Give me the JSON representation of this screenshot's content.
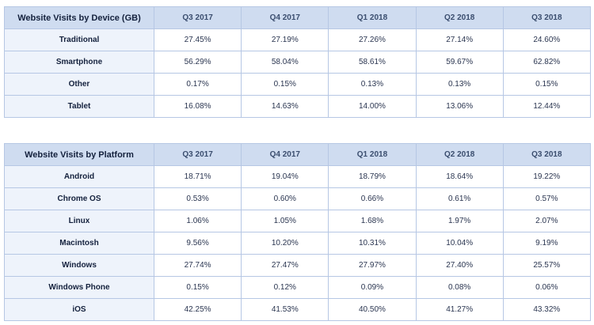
{
  "chart_data": [
    {
      "type": "table",
      "title": "Website Visits by Device (GB)",
      "columns": [
        "Q3 2017",
        "Q4 2017",
        "Q1 2018",
        "Q2 2018",
        "Q3 2018"
      ],
      "rows": [
        {
          "label": "Traditional",
          "values": [
            "27.45%",
            "27.19%",
            "27.26%",
            "27.14%",
            "24.60%"
          ]
        },
        {
          "label": "Smartphone",
          "values": [
            "56.29%",
            "58.04%",
            "58.61%",
            "59.67%",
            "62.82%"
          ]
        },
        {
          "label": "Other",
          "values": [
            "0.17%",
            "0.15%",
            "0.13%",
            "0.13%",
            "0.15%"
          ]
        },
        {
          "label": "Tablet",
          "values": [
            "16.08%",
            "14.63%",
            "14.00%",
            "13.06%",
            "12.44%"
          ]
        }
      ]
    },
    {
      "type": "table",
      "title": "Website Visits by Platform",
      "columns": [
        "Q3 2017",
        "Q4 2017",
        "Q1 2018",
        "Q2 2018",
        "Q3 2018"
      ],
      "rows": [
        {
          "label": "Android",
          "values": [
            "18.71%",
            "19.04%",
            "18.79%",
            "18.64%",
            "19.22%"
          ]
        },
        {
          "label": "Chrome OS",
          "values": [
            "0.53%",
            "0.60%",
            "0.66%",
            "0.61%",
            "0.57%"
          ]
        },
        {
          "label": "Linux",
          "values": [
            "1.06%",
            "1.05%",
            "1.68%",
            "1.97%",
            "2.07%"
          ]
        },
        {
          "label": "Macintosh",
          "values": [
            "9.56%",
            "10.20%",
            "10.31%",
            "10.04%",
            "9.19%"
          ]
        },
        {
          "label": "Windows",
          "values": [
            "27.74%",
            "27.47%",
            "27.97%",
            "27.40%",
            "25.57%"
          ]
        },
        {
          "label": "Windows Phone",
          "values": [
            "0.15%",
            "0.12%",
            "0.09%",
            "0.08%",
            "0.06%"
          ]
        },
        {
          "label": "iOS",
          "values": [
            "42.25%",
            "41.53%",
            "40.50%",
            "41.27%",
            "43.32%"
          ]
        }
      ]
    }
  ]
}
